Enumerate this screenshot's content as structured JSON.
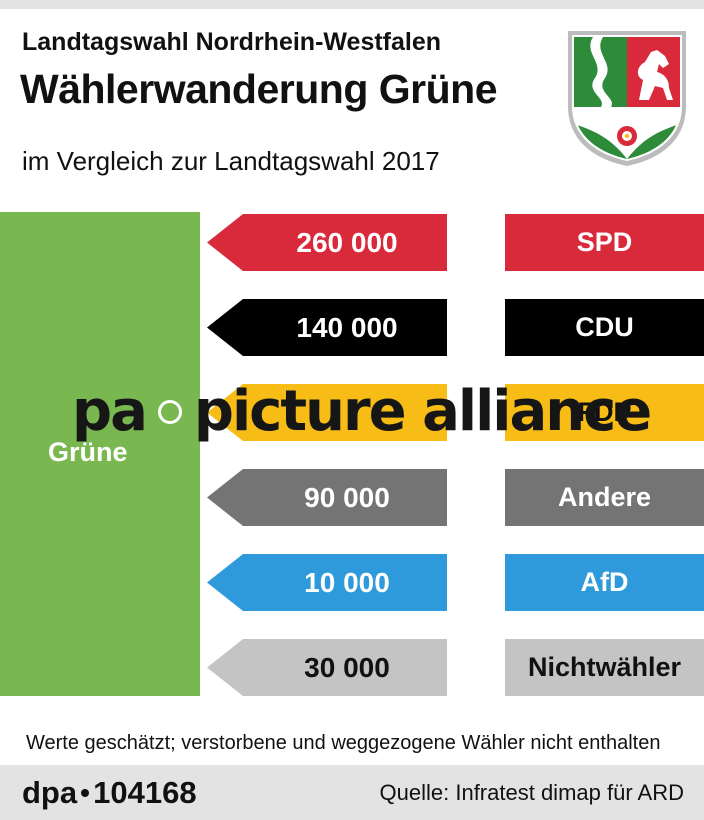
{
  "header": {
    "title_line1": "Landtagswahl Nordrhein-Westfalen",
    "title_line2": "Wählerwanderung Grüne",
    "subtitle": "im Vergleich zur Landtagswahl 2017"
  },
  "watermark": {
    "text_left": "pa",
    "text_right": "picture alliance"
  },
  "colors": {
    "gruene": "#79b851",
    "SPD": "#d92a3c",
    "CDU": "#000000",
    "FDP": "#f7bd16",
    "Andere": "#747474",
    "AfD": "#2e9adb",
    "Nichtwähler": "#c4c4c4"
  },
  "chart_data": {
    "type": "bar",
    "target": "Grüne",
    "categories": [
      "SPD",
      "CDU",
      "FDP",
      "Andere",
      "AfD",
      "Nichtwähler"
    ],
    "values": [
      260000,
      140000,
      null,
      90000,
      10000,
      30000
    ],
    "value_labels": [
      "260 000",
      "140 000",
      "",
      "90 000",
      "10 000",
      "30 000"
    ],
    "direction": "to Grüne"
  },
  "footnote": "Werte geschätzt; verstorbene und weggezogene Wähler nicht enthalten",
  "footer": {
    "agency": "dpa",
    "id": "104168",
    "source": "Quelle: Infratest dimap für ARD"
  }
}
